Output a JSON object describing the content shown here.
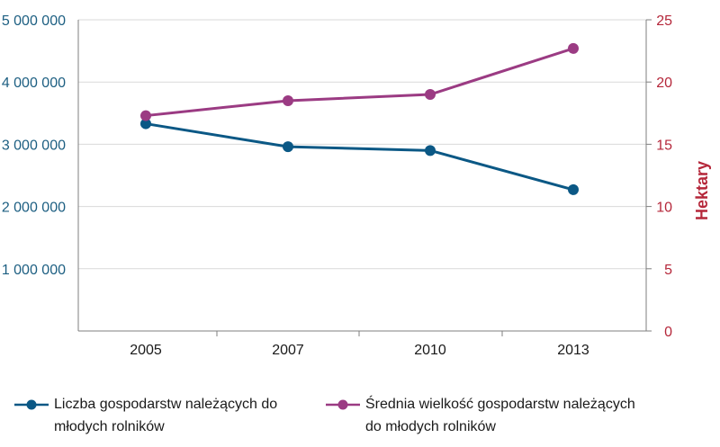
{
  "chart_data": {
    "type": "line",
    "x": [
      "2005",
      "2007",
      "2010",
      "2013"
    ],
    "ylabel_left": "",
    "ylabel_right": "Hektary",
    "left_ticks": [
      "1 000 000",
      "2 000 000",
      "3 000 000",
      "4 000 000",
      "5 000 000"
    ],
    "right_ticks": [
      "0",
      "5",
      "10",
      "15",
      "20",
      "25"
    ],
    "ylim_left": [
      1000000,
      5000000
    ],
    "ylim_right": [
      0,
      25
    ],
    "grid": "horizontal",
    "legend_position": "bottom",
    "series": [
      {
        "name_line1": "Liczba gospodarstw należących do",
        "name_line2": "młodych rolników",
        "axis": "left",
        "color": "#0b5885",
        "values": [
          3330000,
          2960000,
          2900000,
          2270000
        ]
      },
      {
        "name_line1": "Średnia wielkość gospodarstw należących",
        "name_line2": "do młodych rolników",
        "axis": "right",
        "color": "#9b3b83",
        "values": [
          17.3,
          18.5,
          19.0,
          22.7
        ]
      }
    ],
    "colors": {
      "left_axis": "#1d5f82",
      "right_axis": "#b5273a",
      "grid": "#d9d9d9",
      "axis_line": "#7f7f7f"
    }
  }
}
